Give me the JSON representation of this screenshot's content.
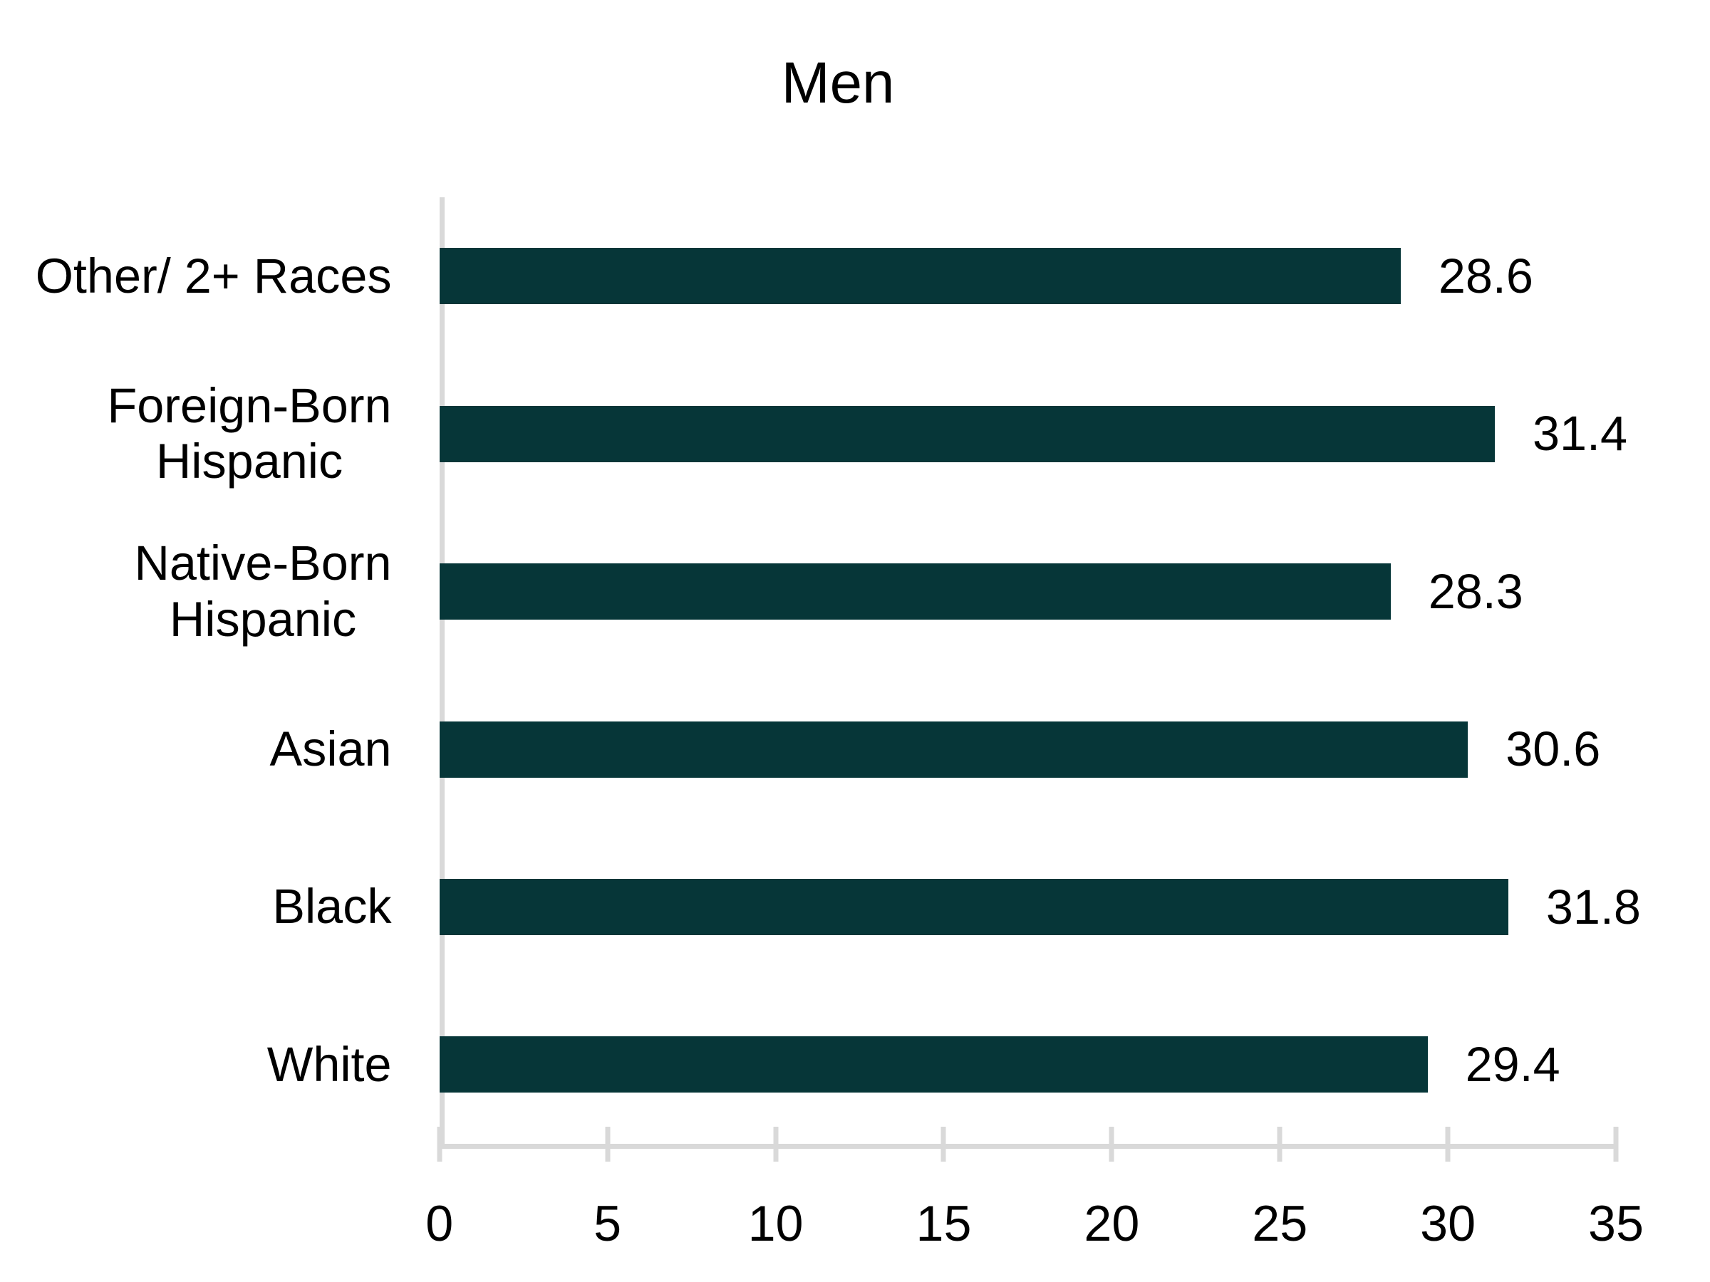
{
  "chart_data": {
    "type": "bar",
    "orientation": "horizontal",
    "title": "Men",
    "categories": [
      "Other/ 2+ Races",
      "Foreign-Born Hispanic",
      "Native-Born Hispanic",
      "Asian",
      "Black",
      "White"
    ],
    "category_lines": [
      [
        "Other/ 2+ Races"
      ],
      [
        "Foreign-Born",
        "Hispanic"
      ],
      [
        "Native-Born",
        "Hispanic"
      ],
      [
        "Asian"
      ],
      [
        "Black"
      ],
      [
        "White"
      ]
    ],
    "values": [
      28.6,
      31.4,
      28.3,
      30.6,
      31.8,
      29.4
    ],
    "value_labels": [
      "28.6",
      "31.4",
      "28.3",
      "30.6",
      "31.8",
      "29.4"
    ],
    "xlim": [
      0,
      35
    ],
    "x_ticks": [
      0,
      5,
      10,
      15,
      20,
      25,
      30,
      35
    ],
    "grid": false,
    "legend": null,
    "bar_color": "#063638",
    "axis_color": "#D9D9D9",
    "text_color": "#000000",
    "background_color": "#FFFFFF"
  }
}
